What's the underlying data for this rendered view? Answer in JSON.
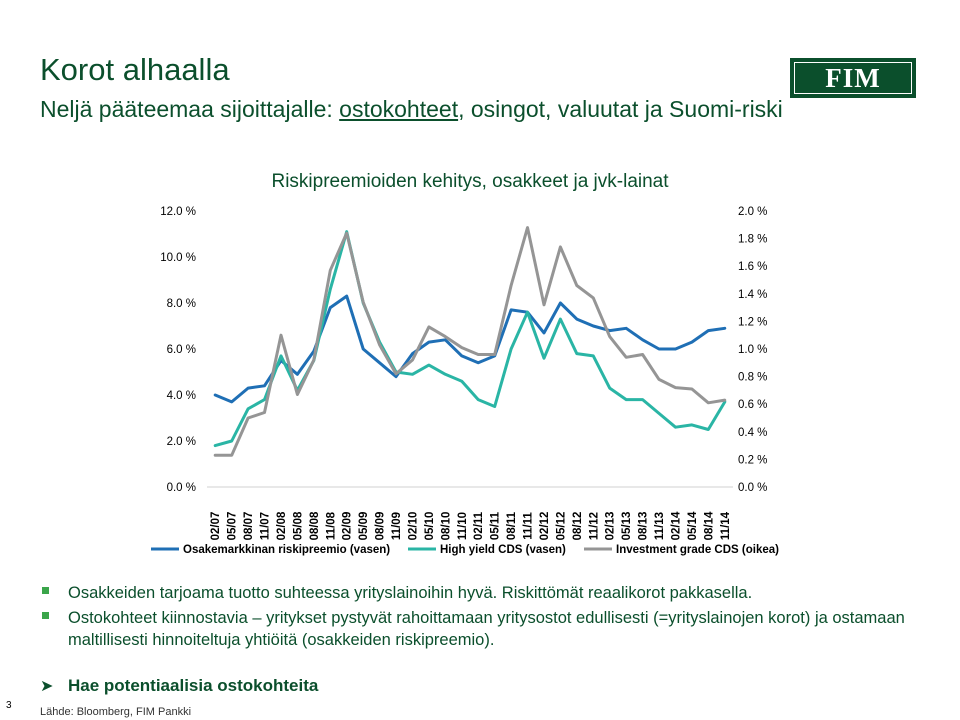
{
  "slide": {
    "title": "Korot alhaalla",
    "subtitle_pre": "Neljä pääteemaa sijoittajalle: ",
    "subtitle_link": "ostokohteet",
    "subtitle_post": ", osingot, valuutat ja Suomi-riski",
    "logo_text": "FIM",
    "bullets": [
      "Osakkeiden tarjoama tuotto suhteessa yrityslainoihin hyvä. Riskittömät reaalikorot pakkasella.",
      "Ostokohteet kiinnostavia – yritykset pystyvät rahoittamaan yritysostot edullisesti (=yrityslainojen korot) ja ostamaan maltillisesti hinnoiteltuja yhtiöitä (osakkeiden riskipreemio)."
    ],
    "arrow_item": "Hae potentiaalisia ostokohteita",
    "page_number": "3",
    "source": "Lähde: Bloomberg, FIM Pankki"
  },
  "colors": {
    "brand": "#0b4f2c",
    "bullet": "#3aa54a",
    "title_chart": "#0b4f2c",
    "series_equity": "#1f6fb5",
    "series_hy": "#2ab5a5",
    "series_ig": "#959595"
  },
  "chart_data": {
    "type": "line",
    "title": "Riskipreemioiden kehitys, osakkeet ja jvk-lainat",
    "categories": [
      "02/07",
      "05/07",
      "08/07",
      "11/07",
      "02/08",
      "05/08",
      "08/08",
      "11/08",
      "02/09",
      "05/09",
      "08/09",
      "11/09",
      "02/10",
      "05/10",
      "08/10",
      "11/10",
      "02/11",
      "05/11",
      "08/11",
      "11/11",
      "02/12",
      "05/12",
      "08/12",
      "11/12",
      "02/13",
      "05/13",
      "08/13",
      "11/13",
      "02/14",
      "05/14",
      "08/14",
      "11/14"
    ],
    "left_axis": {
      "ylim": [
        0,
        12
      ],
      "ticks": [
        "0.0 %",
        "2.0 %",
        "4.0 %",
        "6.0 %",
        "8.0 %",
        "10.0 %",
        "12.0 %"
      ],
      "tick_values": [
        0,
        2,
        4,
        6,
        8,
        10,
        12
      ]
    },
    "right_axis": {
      "ylim": [
        0,
        2
      ],
      "ticks": [
        "0.0 %",
        "0.2 %",
        "0.4 %",
        "0.6 %",
        "0.8 %",
        "1.0 %",
        "1.2 %",
        "1.4 %",
        "1.6 %",
        "1.8 %",
        "2.0 %"
      ],
      "tick_values": [
        0,
        0.2,
        0.4,
        0.6,
        0.8,
        1.0,
        1.2,
        1.4,
        1.6,
        1.8,
        2.0
      ]
    },
    "grid": false,
    "legend_placement": "bottom",
    "series": [
      {
        "name": "Osakemarkkinan riskipreemio (vasen)",
        "axis": "left",
        "color": "#1f6fb5",
        "values": [
          4.0,
          3.7,
          4.3,
          4.4,
          5.5,
          4.9,
          5.9,
          7.8,
          8.3,
          6.0,
          5.4,
          4.8,
          5.8,
          6.3,
          6.4,
          5.7,
          5.4,
          5.7,
          7.7,
          7.6,
          6.7,
          8.0,
          7.3,
          7.0,
          6.8,
          6.9,
          6.4,
          6.0,
          6.0,
          6.3,
          6.8,
          6.9
        ]
      },
      {
        "name": "High yield CDS (vasen)",
        "axis": "left",
        "color": "#2ab5a5",
        "values": [
          1.8,
          2.0,
          3.4,
          3.8,
          5.7,
          4.2,
          5.5,
          8.6,
          11.1,
          8.0,
          6.3,
          5.0,
          4.9,
          5.3,
          4.9,
          4.6,
          3.8,
          3.5,
          6.0,
          7.6,
          5.6,
          7.3,
          5.8,
          5.7,
          4.3,
          3.8,
          3.8,
          3.2,
          2.6,
          2.7,
          2.5,
          3.7
        ]
      },
      {
        "name": "Investment grade CDS (oikea)",
        "axis": "right",
        "color": "#959595",
        "values": [
          0.23,
          0.23,
          0.5,
          0.54,
          1.1,
          0.67,
          0.92,
          1.57,
          1.84,
          1.34,
          1.03,
          0.82,
          0.92,
          1.16,
          1.09,
          1.01,
          0.96,
          0.96,
          1.46,
          1.88,
          1.32,
          1.74,
          1.46,
          1.37,
          1.09,
          0.94,
          0.96,
          0.78,
          0.72,
          0.71,
          0.61,
          0.63
        ]
      }
    ]
  }
}
